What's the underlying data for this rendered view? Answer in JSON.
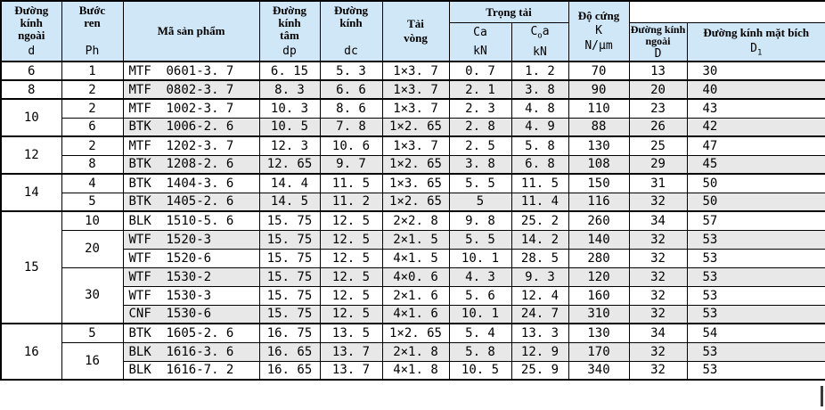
{
  "header": {
    "c_d": {
      "lines": [
        "Đường",
        "kính",
        "ngoài"
      ],
      "sym": "d"
    },
    "c_ph": {
      "lines": [
        "Bước",
        "ren"
      ],
      "sym": "Ph"
    },
    "c_code": {
      "label": "Mã sản phẩm"
    },
    "c_dp": {
      "lines": [
        "Đường",
        "kính",
        "tâm"
      ],
      "sym": "dp"
    },
    "c_dc": {
      "lines": [
        "Đường",
        "kính"
      ],
      "sym": "dc"
    },
    "c_tv": {
      "lines": [
        "Tải",
        "vòng"
      ]
    },
    "c_load": {
      "label": "Trọng tải"
    },
    "c_ca": {
      "sym": "Ca",
      "unit": "kN"
    },
    "c_c0a": {
      "pre": "C",
      "sub": "o",
      "post": "a",
      "unit": "kN"
    },
    "c_k": {
      "label": "Độ cứng",
      "sym": "K",
      "unit": "N/μm"
    },
    "c_D": {
      "line1": "Đường kính",
      "line2": "ngoài",
      "sym": "D"
    },
    "c_D1": {
      "label": "Đường kính mặt bích",
      "pre": "D",
      "sub": "1"
    }
  },
  "colors": {
    "header_bg": "#cfe7f6",
    "shade_bg": "#e8e8e8",
    "border": "#000000"
  },
  "table": {
    "rows": [
      {
        "d": "6",
        "dspan": 1,
        "group": true,
        "ph": "1",
        "phspan": 1,
        "prefix": "MTF",
        "code": "0601-3. 7",
        "dp": "6. 15",
        "dc": "5. 3",
        "tv": "1×3. 7",
        "ca": "0. 7",
        "c0a": "1. 2",
        "k": "70",
        "D": "13",
        "D1": "30",
        "shade": false
      },
      {
        "d": "8",
        "dspan": 1,
        "group": true,
        "ph": "2",
        "phspan": 1,
        "prefix": "MTF",
        "code": "0802-3. 7",
        "dp": "8. 3",
        "dc": "6. 6",
        "tv": "1×3. 7",
        "ca": "2. 1",
        "c0a": "3. 8",
        "k": "90",
        "D": "20",
        "D1": "40",
        "shade": true
      },
      {
        "d": "10",
        "dspan": 2,
        "group": true,
        "ph": "2",
        "phspan": 1,
        "prefix": "MTF",
        "code": "1002-3. 7",
        "dp": "10. 3",
        "dc": "8. 6",
        "tv": "1×3. 7",
        "ca": "2. 3",
        "c0a": "4. 8",
        "k": "110",
        "D": "23",
        "D1": "43",
        "shade": false
      },
      {
        "ph": "6",
        "phspan": 1,
        "prefix": "BTK",
        "code": "1006-2. 6",
        "dp": "10. 5",
        "dc": "7. 8",
        "tv": "1×2. 65",
        "ca": "2. 8",
        "c0a": "4. 9",
        "k": "88",
        "D": "26",
        "D1": "42",
        "shade": true
      },
      {
        "d": "12",
        "dspan": 2,
        "group": true,
        "ph": "2",
        "phspan": 1,
        "prefix": "MTF",
        "code": "1202-3. 7",
        "dp": "12. 3",
        "dc": "10. 6",
        "tv": "1×3. 7",
        "ca": "2. 5",
        "c0a": "5. 8",
        "k": "130",
        "D": "25",
        "D1": "47",
        "shade": false
      },
      {
        "ph": "8",
        "phspan": 1,
        "prefix": "BTK",
        "code": "1208-2. 6",
        "dp": "12. 65",
        "dc": "9. 7",
        "tv": "1×2. 65",
        "ca": "3. 8",
        "c0a": "6. 8",
        "k": "108",
        "D": "29",
        "D1": "45",
        "shade": true
      },
      {
        "d": "14",
        "dspan": 2,
        "group": true,
        "ph": "4",
        "phspan": 1,
        "prefix": "BTK",
        "code": "1404-3. 6",
        "dp": "14. 4",
        "dc": "11. 5",
        "tv": "1×3. 65",
        "ca": "5. 5",
        "c0a": "11. 5",
        "k": "150",
        "D": "31",
        "D1": "50",
        "shade": false
      },
      {
        "ph": "5",
        "phspan": 1,
        "prefix": "BTK",
        "code": "1405-2. 6",
        "dp": "14. 5",
        "dc": "11. 2",
        "tv": "1×2. 65",
        "ca": "5",
        "c0a": "11. 4",
        "k": "116",
        "D": "32",
        "D1": "50",
        "shade": true
      },
      {
        "d": "15",
        "dspan": 6,
        "group": true,
        "ph": "10",
        "phspan": 1,
        "prefix": "BLK",
        "code": "1510-5. 6",
        "dp": "15. 75",
        "dc": "12. 5",
        "tv": "2×2. 8",
        "ca": "9. 8",
        "c0a": "25. 2",
        "k": "260",
        "D": "34",
        "D1": "57",
        "shade": false
      },
      {
        "ph": "20",
        "phspan": 2,
        "prefix": "WTF",
        "code": "1520-3",
        "dp": "15. 75",
        "dc": "12. 5",
        "tv": "2×1. 5",
        "ca": "5. 5",
        "c0a": "14. 2",
        "k": "140",
        "D": "32",
        "D1": "53",
        "shade": true
      },
      {
        "prefix": "WTF",
        "code": "1520-6",
        "dp": "15. 75",
        "dc": "12. 5",
        "tv": "4×1. 5",
        "ca": "10. 1",
        "c0a": "28. 5",
        "k": "280",
        "D": "32",
        "D1": "53",
        "shade": false
      },
      {
        "ph": "30",
        "phspan": 3,
        "prefix": "WTF",
        "code": "1530-2",
        "dp": "15. 75",
        "dc": "12. 5",
        "tv": "4×0. 6",
        "ca": "4. 3",
        "c0a": "9. 3",
        "k": "120",
        "D": "32",
        "D1": "53",
        "shade": true
      },
      {
        "prefix": "WTF",
        "code": "1530-3",
        "dp": "15. 75",
        "dc": "12. 5",
        "tv": "2×1. 6",
        "ca": "5. 6",
        "c0a": "12. 4",
        "k": "160",
        "D": "32",
        "D1": "53",
        "shade": false
      },
      {
        "prefix": "CNF",
        "code": "1530-6",
        "dp": "15. 75",
        "dc": "12. 5",
        "tv": "4×1. 6",
        "ca": "10. 1",
        "c0a": "24. 7",
        "k": "310",
        "D": "32",
        "D1": "53",
        "shade": true
      },
      {
        "d": "16",
        "dspan": 3,
        "group": true,
        "ph": "5",
        "phspan": 1,
        "prefix": "BTK",
        "code": "1605-2. 6",
        "dp": "16. 75",
        "dc": "13. 5",
        "tv": "1×2. 65",
        "ca": "5. 4",
        "c0a": "13. 3",
        "k": "130",
        "D": "34",
        "D1": "54",
        "shade": false
      },
      {
        "ph": "16",
        "phspan": 2,
        "prefix": "BLK",
        "code": "1616-3. 6",
        "dp": "16. 65",
        "dc": "13. 7",
        "tv": "2×1. 8",
        "ca": "5. 8",
        "c0a": "12. 9",
        "k": "170",
        "D": "32",
        "D1": "53",
        "shade": true
      },
      {
        "prefix": "BLK",
        "code": "1616-7. 2",
        "dp": "16. 65",
        "dc": "13. 7",
        "tv": "4×1. 8",
        "ca": "10. 5",
        "c0a": "25. 9",
        "k": "340",
        "D": "32",
        "D1": "53",
        "shade": false
      }
    ]
  }
}
